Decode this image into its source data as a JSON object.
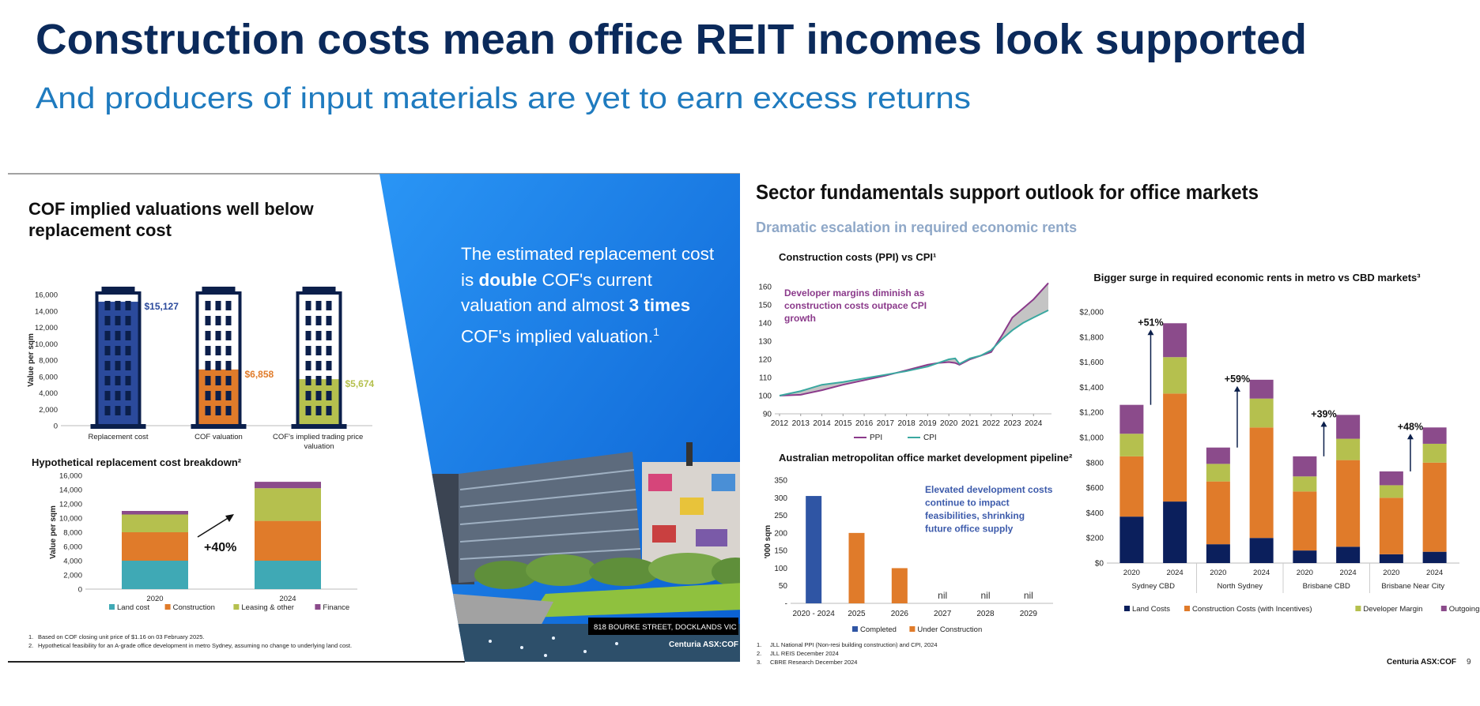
{
  "header": {
    "title": "Construction costs mean office REIT incomes look supported",
    "subtitle": "And producers of input materials are yet to earn excess returns"
  },
  "left_panel": {
    "title": "COF implied valuations well below replacement cost",
    "footnotes": [
      {
        "number": "1.",
        "text": "Based on COF closing unit price of $1.16 on 03 February 2025."
      },
      {
        "number": "2.",
        "text": "Hypothetical feasibility for an A-grade office development in metro Sydney, assuming no change to underlying land cost."
      }
    ]
  },
  "callout": {
    "parts": [
      "The estimated replacement cost is ",
      "double",
      " COF's current valuation and almost ",
      "3 times",
      " COF's implied valuation.",
      "1"
    ]
  },
  "photo": {
    "caption": "818 BOURKE STREET, DOCKLANDS VIC",
    "watermark": "Centuria ASX:COF"
  },
  "right_panel": {
    "title": "Sector fundamentals support outlook for office markets",
    "subtitle": "Dramatic escalation in required economic rents",
    "footnotes": [
      {
        "number": "1.",
        "text": "JLL National PPI (Non-resi building construction) and CPI, 2024"
      },
      {
        "number": "2.",
        "text": "JLL REIS December 2024"
      },
      {
        "number": "3.",
        "text": "CBRE Research December 2024"
      }
    ]
  },
  "footer": {
    "brand": "Centuria ASX:COF",
    "page": "9"
  },
  "chart_data": [
    {
      "type": "pictogram",
      "categories": [
        "Replacement cost",
        "COF valuation",
        "COF's implied trading price valuation"
      ],
      "values": [
        15127,
        6858,
        5674
      ],
      "value_labels": [
        "$15,127",
        "$6,858",
        "$5,674"
      ],
      "colors": [
        "#2b4a9c",
        "#e07b2a",
        "#b5c04e"
      ],
      "ylabel": "Value per sqm",
      "ylim": [
        0,
        16000
      ],
      "yticks": [
        0,
        {
          "value": 2000,
          "label": "2,000"
        },
        {
          "value": 4000,
          "label": "4,000"
        },
        {
          "value": 6000,
          "label": "6,000"
        },
        {
          "value": 8000,
          "label": "8,000"
        },
        {
          "value": 10000,
          "label": "10,000"
        },
        {
          "value": 12000,
          "label": "12,000"
        },
        {
          "value": 14000,
          "label": "14,000"
        },
        {
          "value": 16000,
          "label": "16,000"
        }
      ]
    },
    {
      "type": "stacked_bar",
      "title": "Hypothetical replacement cost breakdown²",
      "categories": [
        "2020",
        "2024"
      ],
      "series": [
        {
          "name": "Land cost",
          "color": "#3fa9b5",
          "values": [
            4000,
            4000
          ]
        },
        {
          "name": "Construction",
          "color": "#e07b2a",
          "values": [
            4000,
            5600
          ]
        },
        {
          "name": "Leasing & other",
          "color": "#b5c04e",
          "values": [
            2500,
            4600
          ]
        },
        {
          "name": "Finance",
          "color": "#8b4b8b",
          "values": [
            500,
            900
          ]
        }
      ],
      "ylabel": "Value per sqm",
      "ylim": [
        0,
        16000
      ],
      "yticks": [
        0,
        {
          "value": 2000,
          "label": "2,000"
        },
        {
          "value": 4000,
          "label": "4,000"
        },
        {
          "value": 6000,
          "label": "6,000"
        },
        {
          "value": 8000,
          "label": "8,000"
        },
        {
          "value": 10000,
          "label": "10,000"
        },
        {
          "value": 12000,
          "label": "12,000"
        },
        {
          "value": 14000,
          "label": "14,000"
        },
        {
          "value": 16000,
          "label": "16,000"
        }
      ],
      "annotation": "+40%",
      "legend": "bottom"
    },
    {
      "type": "line",
      "title": "Construction costs (PPI) vs CPI¹",
      "x": [
        2012,
        2013,
        2014,
        2015,
        2016,
        2017,
        2018,
        2019,
        2019.5,
        2020,
        2020.3,
        2020.5,
        2021,
        2021.5,
        2022,
        2022.5,
        2023,
        2023.5,
        2024,
        2024.7
      ],
      "series": [
        {
          "name": "PPI",
          "color": "#8b3a8b",
          "values": [
            100,
            100.5,
            103,
            106,
            108.5,
            111,
            114,
            117,
            118,
            118.5,
            118,
            117,
            120,
            122,
            124,
            133,
            143,
            148,
            153,
            162
          ]
        },
        {
          "name": "CPI",
          "color": "#3aa8a0",
          "values": [
            100,
            102.5,
            106,
            107.5,
            109.5,
            111.5,
            113.5,
            116,
            118,
            120,
            120.5,
            117.5,
            120.5,
            122,
            125,
            131,
            136,
            140,
            143,
            147
          ]
        }
      ],
      "xlim": [
        2012,
        2024.7
      ],
      "xticks": [
        2012,
        2013,
        2014,
        2015,
        2016,
        2017,
        2018,
        2019,
        2020,
        2021,
        2022,
        2023,
        2024
      ],
      "ylim": [
        90,
        160
      ],
      "yticks": [
        90,
        100,
        110,
        120,
        130,
        140,
        150,
        160
      ],
      "fill_between": true,
      "annotation": "Developer margins diminish as construction costs outpace CPI growth",
      "legend": "bottom"
    },
    {
      "type": "bar",
      "title": "Australian metropolitan office market development pipeline²",
      "categories": [
        "2020 - 2024",
        "2025",
        "2026",
        "2027",
        "2028",
        "2029"
      ],
      "series": [
        {
          "name": "Completed",
          "color": "#2f55a4",
          "values": [
            305,
            null,
            null,
            null,
            null,
            null
          ]
        },
        {
          "name": "Under Construction",
          "color": "#e07b2a",
          "values": [
            null,
            200,
            100,
            0,
            0,
            0
          ],
          "value_labels": [
            null,
            null,
            null,
            "nil",
            "nil",
            "nil"
          ]
        }
      ],
      "ylabel": "'000 sqm",
      "ylim": [
        0,
        350
      ],
      "yticks": [
        {
          "value": 0,
          "label": "-"
        },
        50,
        100,
        150,
        200,
        250,
        300,
        350
      ],
      "annotation": "Elevated development costs continue to impact feasibilities, shrinking future office supply",
      "legend": "bottom"
    },
    {
      "type": "stacked_bar",
      "title": "Bigger surge in required economic rents in metro vs CBD markets³",
      "categories": [
        "2020",
        "2024",
        "2020",
        "2024",
        "2020",
        "2024",
        "2020",
        "2024"
      ],
      "groups": [
        "Sydney CBD",
        "North Sydney",
        "Brisbane CBD",
        "Brisbane Near City"
      ],
      "series": [
        {
          "name": "Land Costs",
          "color": "#0b1f5c",
          "values": [
            370,
            490,
            150,
            200,
            100,
            130,
            70,
            90
          ]
        },
        {
          "name": "Construction Costs (with Incentives)",
          "color": "#e07b2a",
          "values": [
            480,
            860,
            500,
            880,
            470,
            690,
            450,
            710
          ]
        },
        {
          "name": "Developer Margin",
          "color": "#b5c04e",
          "values": [
            180,
            290,
            140,
            230,
            120,
            170,
            100,
            150
          ]
        },
        {
          "name": "Outgoings",
          "color": "#8b4b8b",
          "values": [
            230,
            270,
            130,
            150,
            160,
            190,
            110,
            130
          ]
        }
      ],
      "ylim": [
        0,
        2000
      ],
      "yticks": [
        {
          "value": 0,
          "label": "$0"
        },
        {
          "value": 200,
          "label": "$200"
        },
        {
          "value": 400,
          "label": "$400"
        },
        {
          "value": 600,
          "label": "$600"
        },
        {
          "value": 800,
          "label": "$800"
        },
        {
          "value": 1000,
          "label": "$1,000"
        },
        {
          "value": 1200,
          "label": "$1,200"
        },
        {
          "value": 1400,
          "label": "$1,400"
        },
        {
          "value": 1600,
          "label": "$1,600"
        },
        {
          "value": 1800,
          "label": "$1,800"
        },
        {
          "value": 2000,
          "label": "$2,000"
        }
      ],
      "annotations": [
        "+51%",
        "+59%",
        "+39%",
        "+48%"
      ],
      "legend": "bottom"
    }
  ]
}
